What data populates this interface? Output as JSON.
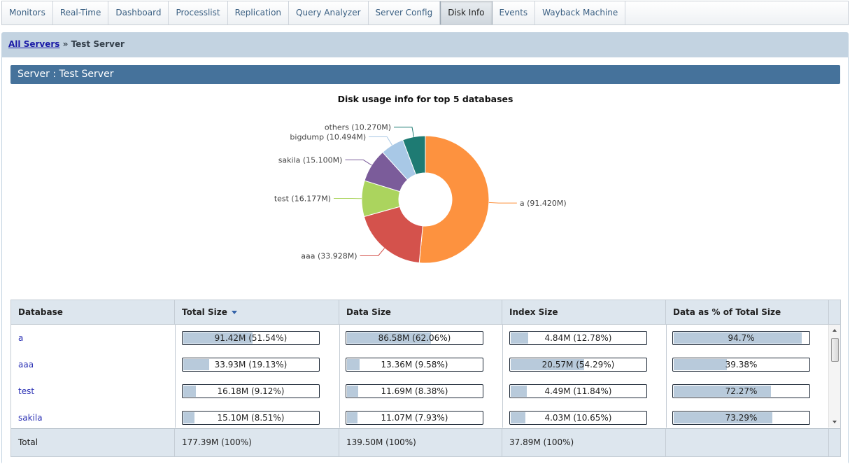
{
  "tabs": [
    {
      "label": "Monitors",
      "active": false
    },
    {
      "label": "Real-Time",
      "active": false
    },
    {
      "label": "Dashboard",
      "active": false
    },
    {
      "label": "Processlist",
      "active": false
    },
    {
      "label": "Replication",
      "active": false
    },
    {
      "label": "Query Analyzer",
      "active": false
    },
    {
      "label": "Server Config",
      "active": false
    },
    {
      "label": "Disk Info",
      "active": true
    },
    {
      "label": "Events",
      "active": false
    },
    {
      "label": "Wayback Machine",
      "active": false
    }
  ],
  "breadcrumb": {
    "link": "All Servers",
    "separator": "»",
    "current": "Test Server"
  },
  "server_header": "Server : Test Server",
  "chart_data": {
    "type": "pie",
    "title": "Disk usage info for top 5 databases",
    "unit": "M",
    "slices": [
      {
        "label": "a",
        "value": 91.42,
        "display": "a (91.420M)",
        "color": "#fd923f"
      },
      {
        "label": "aaa",
        "value": 33.928,
        "display": "aaa (33.928M)",
        "color": "#d4524c"
      },
      {
        "label": "test",
        "value": 16.177,
        "display": "test (16.177M)",
        "color": "#abd45e"
      },
      {
        "label": "sakila",
        "value": 15.1,
        "display": "sakila (15.100M)",
        "color": "#7b5c9a"
      },
      {
        "label": "bigdump",
        "value": 10.494,
        "display": "bigdump (10.494M)",
        "color": "#a8c8e6"
      },
      {
        "label": "others",
        "value": 10.27,
        "display": "others (10.270M)",
        "color": "#1e7b73"
      }
    ]
  },
  "table": {
    "columns": [
      "Database",
      "Total Size",
      "Data Size",
      "Index Size",
      "Data as % of Total Size"
    ],
    "sorted_column": "Total Size",
    "rows": [
      {
        "database": "a",
        "total": {
          "text": "91.42M (51.54%)",
          "pct": 51.54
        },
        "data": {
          "text": "86.58M (62.06%)",
          "pct": 62.06
        },
        "index": {
          "text": "4.84M (12.78%)",
          "pct": 12.78
        },
        "data_pct": {
          "text": "94.7%",
          "pct": 94.7
        }
      },
      {
        "database": "aaa",
        "total": {
          "text": "33.93M (19.13%)",
          "pct": 19.13
        },
        "data": {
          "text": "13.36M (9.58%)",
          "pct": 9.58
        },
        "index": {
          "text": "20.57M (54.29%)",
          "pct": 54.29
        },
        "data_pct": {
          "text": "39.38%",
          "pct": 39.38
        }
      },
      {
        "database": "test",
        "total": {
          "text": "16.18M (9.12%)",
          "pct": 9.12
        },
        "data": {
          "text": "11.69M (8.38%)",
          "pct": 8.38
        },
        "index": {
          "text": "4.49M (11.84%)",
          "pct": 11.84
        },
        "data_pct": {
          "text": "72.27%",
          "pct": 72.27
        }
      },
      {
        "database": "sakila",
        "total": {
          "text": "15.10M (8.51%)",
          "pct": 8.51
        },
        "data": {
          "text": "11.07M (7.93%)",
          "pct": 7.93
        },
        "index": {
          "text": "4.03M (10.65%)",
          "pct": 10.65
        },
        "data_pct": {
          "text": "73.29%",
          "pct": 73.29
        }
      }
    ],
    "footer": {
      "label": "Total",
      "total": "177.39M (100%)",
      "data": "139.50M (100%)",
      "index": "37.89M (100%)",
      "data_pct": ""
    }
  }
}
